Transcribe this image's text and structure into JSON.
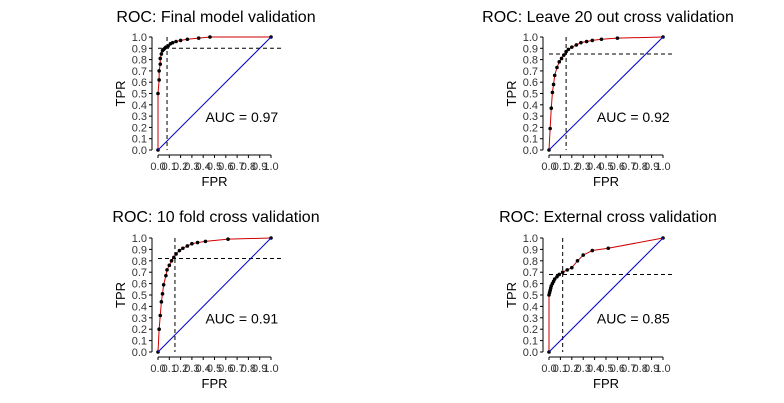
{
  "chart_data": [
    {
      "type": "line",
      "title": "ROC: Final model validation",
      "xlabel": "FPR",
      "ylabel": "TPR",
      "xlim": [
        0,
        1
      ],
      "ylim": [
        0,
        1
      ],
      "xticks": [
        "0.0",
        "0.1",
        "0.2",
        "0.3",
        "0.4",
        "0.5",
        "0.6",
        "0.7",
        "0.8",
        "0.9",
        "1.0"
      ],
      "yticks": [
        "0.0",
        "0.1",
        "0.2",
        "0.3",
        "0.4",
        "0.5",
        "0.6",
        "0.7",
        "0.8",
        "0.9",
        "1.0"
      ],
      "grid": false,
      "annotation": "AUC = 0.97",
      "cutoff": {
        "x": 0.08,
        "y": 0.9
      },
      "series": [
        {
          "color": "#cc0000",
          "markers": true,
          "x": [
            0,
            0,
            0.01,
            0.01,
            0.02,
            0.02,
            0.03,
            0.04,
            0.05,
            0.06,
            0.07,
            0.09,
            0.11,
            0.13,
            0.16,
            0.2,
            0.26,
            0.36,
            0.46,
            1.0
          ],
          "y": [
            0,
            0.5,
            0.62,
            0.7,
            0.76,
            0.81,
            0.85,
            0.88,
            0.89,
            0.9,
            0.91,
            0.92,
            0.94,
            0.95,
            0.96,
            0.97,
            0.98,
            0.99,
            1.0,
            1.0
          ]
        },
        {
          "color": "#0000cc",
          "markers": false,
          "x": [
            0,
            1
          ],
          "y": [
            0,
            1
          ]
        }
      ]
    },
    {
      "type": "line",
      "title": "ROC: Leave 20 out cross validation",
      "xlabel": "FPR",
      "ylabel": "TPR",
      "xlim": [
        0,
        1
      ],
      "ylim": [
        0,
        1
      ],
      "xticks": [
        "0.0",
        "0.1",
        "0.2",
        "0.3",
        "0.4",
        "0.5",
        "0.6",
        "0.7",
        "0.8",
        "0.9",
        "1.0"
      ],
      "yticks": [
        "0.0",
        "0.1",
        "0.2",
        "0.3",
        "0.4",
        "0.5",
        "0.6",
        "0.7",
        "0.8",
        "0.9",
        "1.0"
      ],
      "grid": false,
      "annotation": "AUC = 0.92",
      "cutoff": {
        "x": 0.15,
        "y": 0.85
      },
      "series": [
        {
          "color": "#cc0000",
          "markers": true,
          "x": [
            0,
            0.01,
            0.02,
            0.03,
            0.04,
            0.05,
            0.07,
            0.09,
            0.11,
            0.13,
            0.15,
            0.17,
            0.2,
            0.24,
            0.28,
            0.33,
            0.38,
            0.46,
            0.6,
            1.0
          ],
          "y": [
            0,
            0.19,
            0.37,
            0.51,
            0.58,
            0.66,
            0.73,
            0.78,
            0.81,
            0.84,
            0.87,
            0.89,
            0.91,
            0.93,
            0.95,
            0.96,
            0.97,
            0.98,
            0.99,
            1.0
          ]
        },
        {
          "color": "#0000cc",
          "markers": false,
          "x": [
            0,
            1
          ],
          "y": [
            0,
            1
          ]
        }
      ]
    },
    {
      "type": "line",
      "title": "ROC: 10 fold cross validation",
      "xlabel": "FPR",
      "ylabel": "TPR",
      "xlim": [
        0,
        1
      ],
      "ylim": [
        0,
        1
      ],
      "xticks": [
        "0.0",
        "0.1",
        "0.2",
        "0.3",
        "0.4",
        "0.5",
        "0.6",
        "0.7",
        "0.8",
        "0.9",
        "1.0"
      ],
      "yticks": [
        "0.0",
        "0.1",
        "0.2",
        "0.3",
        "0.4",
        "0.5",
        "0.6",
        "0.7",
        "0.8",
        "0.9",
        "1.0"
      ],
      "grid": false,
      "annotation": "AUC = 0.91",
      "cutoff": {
        "x": 0.15,
        "y": 0.82
      },
      "series": [
        {
          "color": "#cc0000",
          "markers": true,
          "x": [
            0,
            0.01,
            0.02,
            0.03,
            0.04,
            0.05,
            0.07,
            0.08,
            0.1,
            0.12,
            0.14,
            0.16,
            0.19,
            0.22,
            0.26,
            0.3,
            0.35,
            0.42,
            0.62,
            1.0
          ],
          "y": [
            0,
            0.2,
            0.32,
            0.44,
            0.51,
            0.59,
            0.67,
            0.72,
            0.76,
            0.8,
            0.83,
            0.86,
            0.89,
            0.91,
            0.93,
            0.95,
            0.96,
            0.97,
            0.99,
            1.0
          ]
        },
        {
          "color": "#0000cc",
          "markers": false,
          "x": [
            0,
            1
          ],
          "y": [
            0,
            1
          ]
        }
      ]
    },
    {
      "type": "line",
      "title": "ROC: External cross validation",
      "xlabel": "FPR",
      "ylabel": "TPR",
      "xlim": [
        0,
        1
      ],
      "ylim": [
        0,
        1
      ],
      "xticks": [
        "0.0",
        "0.1",
        "0.2",
        "0.3",
        "0.4",
        "0.5",
        "0.6",
        "0.7",
        "0.8",
        "0.9",
        "1.0"
      ],
      "yticks": [
        "0.0",
        "0.1",
        "0.2",
        "0.3",
        "0.4",
        "0.5",
        "0.6",
        "0.7",
        "0.8",
        "0.9",
        "1.0"
      ],
      "grid": false,
      "annotation": "AUC = 0.85",
      "cutoff": {
        "x": 0.12,
        "y": 0.68
      },
      "series": [
        {
          "color": "#cc0000",
          "markers": true,
          "x": [
            0,
            0,
            0.005,
            0.01,
            0.015,
            0.02,
            0.03,
            0.04,
            0.05,
            0.07,
            0.09,
            0.12,
            0.16,
            0.2,
            0.25,
            0.3,
            0.38,
            0.52,
            1.0
          ],
          "y": [
            0,
            0.5,
            0.52,
            0.54,
            0.56,
            0.58,
            0.6,
            0.62,
            0.64,
            0.66,
            0.68,
            0.7,
            0.72,
            0.74,
            0.8,
            0.85,
            0.89,
            0.91,
            1.0
          ]
        },
        {
          "color": "#0000cc",
          "markers": false,
          "x": [
            0,
            1
          ],
          "y": [
            0,
            1
          ]
        }
      ]
    }
  ]
}
